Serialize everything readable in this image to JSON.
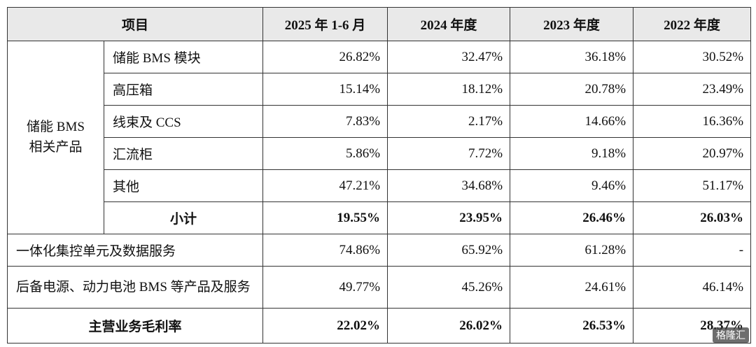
{
  "header": [
    "项目",
    "2025 年 1-6 月",
    "2024 年度",
    "2023 年度",
    "2022 年度"
  ],
  "group": {
    "label_lines": [
      "储能 BMS",
      "相关产品"
    ],
    "rows": [
      {
        "label": "储能 BMS 模块",
        "values": [
          "26.82%",
          "32.47%",
          "36.18%",
          "30.52%"
        ]
      },
      {
        "label": "高压箱",
        "values": [
          "15.14%",
          "18.12%",
          "20.78%",
          "23.49%"
        ]
      },
      {
        "label": "线束及 CCS",
        "values": [
          "7.83%",
          "2.17%",
          "14.66%",
          "16.36%"
        ]
      },
      {
        "label": "汇流柜",
        "values": [
          "5.86%",
          "7.72%",
          "9.18%",
          "20.97%"
        ]
      },
      {
        "label": "其他",
        "values": [
          "47.21%",
          "34.68%",
          "9.46%",
          "51.17%"
        ]
      }
    ],
    "subtotal": {
      "label": "小计",
      "values": [
        "19.55%",
        "23.95%",
        "26.46%",
        "26.03%"
      ]
    }
  },
  "other_rows": [
    {
      "label": "一体化集控单元及数据服务",
      "values": [
        "74.86%",
        "65.92%",
        "61.28%",
        "-"
      ]
    },
    {
      "label": "后备电源、动力电池 BMS 等产品及服务",
      "values": [
        "49.77%",
        "45.26%",
        "24.61%",
        "46.14%"
      ]
    }
  ],
  "total": {
    "label": "主营业务毛利率",
    "values": [
      "22.02%",
      "26.02%",
      "26.53%",
      "28.37%"
    ]
  },
  "watermark": "格隆汇"
}
